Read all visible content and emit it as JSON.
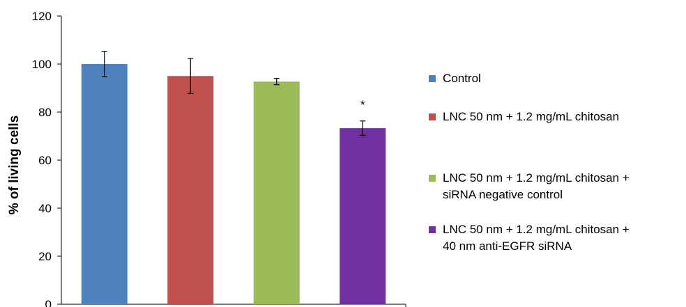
{
  "chart_data": {
    "type": "bar",
    "categories": [
      "Control",
      "LNC 50 nm + 1.2 mg/mL chitosan",
      "LNC 50 nm + 1.2 mg/mL chitosan + siRNA negative control",
      "LNC 50 nm + 1.2 mg/mL chitosan + 40 nm anti-EGFR siRNA"
    ],
    "values": [
      100,
      95,
      92.7,
      73.3
    ],
    "errors": [
      5.3,
      7.3,
      1.3,
      3.0
    ],
    "colors": [
      "#4f81bd",
      "#c0504d",
      "#9bbb59",
      "#7030a0"
    ],
    "ylabel": "% of living cells",
    "xlabel": "",
    "ylim": [
      0,
      120
    ],
    "yticks": [
      0,
      20,
      40,
      60,
      80,
      100,
      120
    ],
    "grid": false,
    "legend_position": "right",
    "legend": [
      {
        "lines": [
          "Control"
        ],
        "color": "#4f81bd"
      },
      {
        "lines": [
          "LNC 50 nm + 1.2 mg/mL chitosan"
        ],
        "color": "#c0504d"
      },
      {
        "lines": [
          "LNC 50 nm + 1.2 mg/mL chitosan +",
          "siRNA negative control"
        ],
        "color": "#9bbb59"
      },
      {
        "lines": [
          "LNC 50 nm + 1.2 mg/mL chitosan +",
          "40 nm anti-EGFR siRNA"
        ],
        "color": "#7030a0"
      }
    ],
    "annotations": [
      {
        "category_index": 3,
        "text": "*"
      }
    ]
  }
}
